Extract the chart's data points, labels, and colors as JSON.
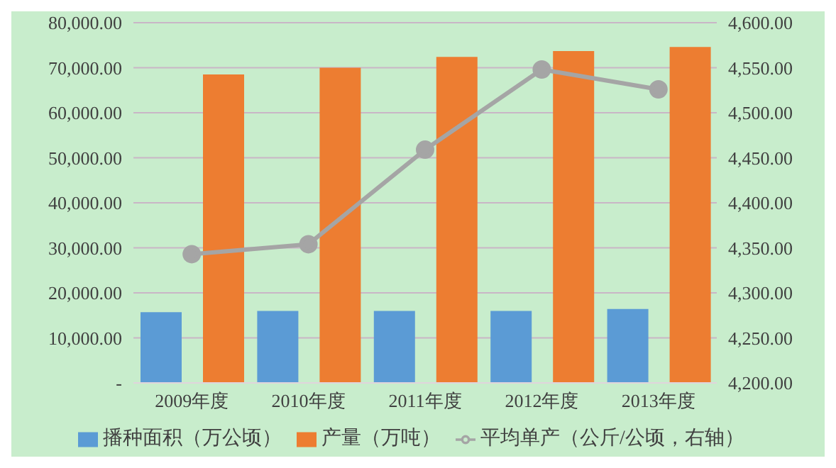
{
  "chart_data": {
    "type": "bar",
    "categories": [
      "2009年度",
      "2010年度",
      "2011年度",
      "2012年度",
      "2013年度"
    ],
    "series": [
      {
        "name": "播种面积（万公顷）",
        "color": "#5b9bd5",
        "values": [
          15700,
          16000,
          16000,
          16000,
          16400
        ]
      },
      {
        "name": "产量（万吨）",
        "color": "#ed7d31",
        "values": [
          68500,
          70000,
          72400,
          73700,
          74600
        ]
      },
      {
        "name": "平均单产（公斤/公顷，右轴）",
        "type": "line",
        "axis": "y2",
        "color": "#a5a5a5",
        "marker": "circle",
        "values": [
          4343,
          4354,
          4459,
          4548,
          4526
        ]
      }
    ],
    "ylim": [
      0,
      80000
    ],
    "yticks": [
      {
        "value": 0,
        "label": "-"
      },
      {
        "value": 10000,
        "label": "10,000.00"
      },
      {
        "value": 20000,
        "label": "20,000.00"
      },
      {
        "value": 30000,
        "label": "30,000.00"
      },
      {
        "value": 40000,
        "label": "40,000.00"
      },
      {
        "value": 50000,
        "label": "50,000.00"
      },
      {
        "value": 60000,
        "label": "60,000.00"
      },
      {
        "value": 70000,
        "label": "70,000.00"
      },
      {
        "value": 80000,
        "label": "80,000.00"
      }
    ],
    "y2lim": [
      4200,
      4600
    ],
    "y2ticks": [
      {
        "value": 4200,
        "label": "4,200.00"
      },
      {
        "value": 4250,
        "label": "4,250.00"
      },
      {
        "value": 4300,
        "label": "4,300.00"
      },
      {
        "value": 4350,
        "label": "4,350.00"
      },
      {
        "value": 4400,
        "label": "4,400.00"
      },
      {
        "value": 4450,
        "label": "4,450.00"
      },
      {
        "value": 4500,
        "label": "4,500.00"
      },
      {
        "value": 4550,
        "label": "4,550.00"
      },
      {
        "value": 4600,
        "label": "4,600.00"
      }
    ],
    "grid": "y",
    "legend": "bottom"
  }
}
